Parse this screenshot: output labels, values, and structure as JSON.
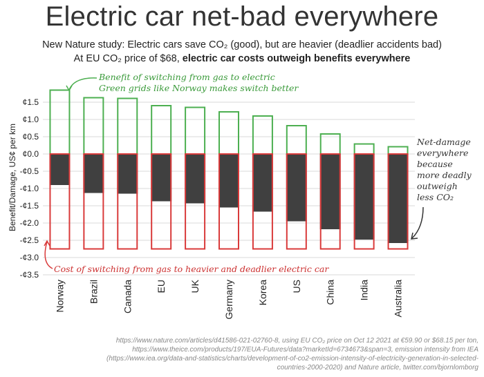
{
  "title": "Electric car net-bad everywhere",
  "subtitle_line1": "New Nature study: Electric cars save CO₂ (good), but are heavier (deadlier accidents bad)",
  "subtitle_line2_prefix": "At EU CO₂ price of $68, ",
  "subtitle_line2_bold": "electric car costs outweigh benefits everywhere",
  "annotation_green": "Benefit of switching from gas to electric\nGreen grids like Norway makes switch better",
  "annotation_red": "Cost of switching from gas to heavier and deadlier electric car",
  "annotation_black": "Net-damage\neverywhere\nbecause\nmore deadly\noutweigh\nless CO₂",
  "source": "https://www.nature.com/articles/d41586-021-02760-8, using EU CO₂ price on Oct 12 2021 at €59.90 or $68.15 per ton, https://www.theice.com/products/197/EUA-Futures/data?marketId=6734673&span=3, emission intensity from IEA (https://www.iea.org/data-and-statistics/charts/development-of-co2-emission-intensity-of-electricity-generation-in-selected-countries-2000-2020) and Nature article, twitter.com/bjornlomborg",
  "colors": {
    "benefit": "#4caf50",
    "cost": "#d93a3a",
    "net": "#404040",
    "grid": "#d9d9d9"
  },
  "chart_data": {
    "type": "bar",
    "ylabel": "Benefit/Damage, US¢ per km",
    "ylim": [
      -3.5,
      2.0
    ],
    "yticks": [
      1.5,
      1.0,
      0.5,
      0.0,
      -0.5,
      -1.0,
      -1.5,
      -2.0,
      -2.5,
      -3.0,
      -3.5
    ],
    "ytick_labels": [
      "¢1.5",
      "¢1.0",
      "¢0.5",
      "¢0.0",
      "-¢0.5",
      "-¢1.0",
      "-¢1.5",
      "-¢2.0",
      "-¢2.5",
      "-¢3.0",
      "-¢3.5"
    ],
    "categories": [
      "Norway",
      "Brazil",
      "Canada",
      "EU",
      "UK",
      "Germany",
      "Korea",
      "US",
      "China",
      "India",
      "Australia"
    ],
    "series": [
      {
        "values": [
          1.85,
          1.63,
          1.61,
          1.4,
          1.35,
          1.22,
          1.1,
          0.82,
          0.58,
          0.29,
          0.21
        ]
      },
      {
        "values": [
          -2.75,
          -2.75,
          -2.75,
          -2.75,
          -2.75,
          -2.75,
          -2.75,
          -2.75,
          -2.75,
          -2.75,
          -2.75
        ]
      },
      {
        "values": [
          -0.9,
          -1.13,
          -1.15,
          -1.37,
          -1.43,
          -1.55,
          -1.67,
          -1.95,
          -2.18,
          -2.48,
          -2.58
        ]
      }
    ],
    "grid": true
  }
}
